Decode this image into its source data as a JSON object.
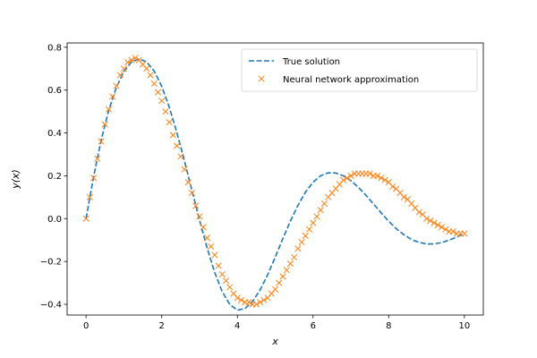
{
  "chart_data": {
    "type": "line",
    "title": "",
    "xlabel": "x",
    "ylabel": "y(x)",
    "xlim": [
      -0.5,
      10.5
    ],
    "ylim": [
      -0.45,
      0.82
    ],
    "grid": false,
    "legend_position": "top-right",
    "x_ticks": [
      0,
      2,
      4,
      6,
      8,
      10
    ],
    "x_tick_labels": [
      "0",
      "2",
      "4",
      "6",
      "8",
      "10"
    ],
    "y_ticks": [
      -0.4,
      -0.2,
      0.0,
      0.2,
      0.4,
      0.6,
      0.8
    ],
    "y_tick_labels": [
      "−0.4",
      "−0.2",
      "0.0",
      "0.2",
      "0.4",
      "0.6",
      "0.8"
    ],
    "series": [
      {
        "name": "True solution",
        "style": "dashed-line",
        "color": "#1f77b4",
        "x": [
          0.0,
          0.2,
          0.4,
          0.6,
          0.8,
          1.0,
          1.2,
          1.4,
          1.6,
          1.8,
          2.0,
          2.2,
          2.4,
          2.6,
          2.8,
          3.0,
          3.2,
          3.4,
          3.6,
          3.8,
          4.0,
          4.2,
          4.4,
          4.6,
          4.8,
          5.0,
          5.2,
          5.4,
          5.6,
          5.8,
          6.0,
          6.2,
          6.4,
          6.6,
          6.8,
          7.0,
          7.2,
          7.4,
          7.6,
          7.8,
          8.0,
          8.2,
          8.4,
          8.6,
          8.8,
          9.0,
          9.2,
          9.4,
          9.6,
          9.8,
          10.0
        ],
        "y": [
          0.0,
          0.196,
          0.367,
          0.506,
          0.612,
          0.687,
          0.731,
          0.746,
          0.732,
          0.689,
          0.618,
          0.52,
          0.402,
          0.27,
          0.131,
          -0.007,
          -0.137,
          -0.251,
          -0.341,
          -0.401,
          -0.427,
          -0.42,
          -0.387,
          -0.333,
          -0.262,
          -0.18,
          -0.094,
          -0.012,
          0.062,
          0.124,
          0.17,
          0.2,
          0.214,
          0.213,
          0.2,
          0.177,
          0.146,
          0.109,
          0.068,
          0.027,
          -0.012,
          -0.047,
          -0.075,
          -0.097,
          -0.111,
          -0.118,
          -0.118,
          -0.112,
          -0.1,
          -0.086,
          -0.069
        ]
      },
      {
        "name": "Neural network approximation",
        "style": "x-marker",
        "color": "#ff7f0e",
        "x": [
          0.0,
          0.1,
          0.2,
          0.3,
          0.4,
          0.5,
          0.6,
          0.7,
          0.8,
          0.9,
          1.0,
          1.1,
          1.2,
          1.3,
          1.4,
          1.5,
          1.6,
          1.7,
          1.8,
          1.9,
          2.0,
          2.1,
          2.2,
          2.3,
          2.4,
          2.5,
          2.6,
          2.7,
          2.8,
          2.9,
          3.0,
          3.1,
          3.2,
          3.3,
          3.4,
          3.5,
          3.6,
          3.7,
          3.8,
          3.9,
          4.0,
          4.1,
          4.2,
          4.3,
          4.4,
          4.5,
          4.6,
          4.7,
          4.8,
          4.9,
          5.0,
          5.1,
          5.2,
          5.3,
          5.4,
          5.5,
          5.6,
          5.7,
          5.8,
          5.9,
          6.0,
          6.1,
          6.2,
          6.3,
          6.4,
          6.5,
          6.6,
          6.7,
          6.8,
          6.9,
          7.0,
          7.1,
          7.2,
          7.3,
          7.4,
          7.5,
          7.6,
          7.7,
          7.8,
          7.9,
          8.0,
          8.1,
          8.2,
          8.3,
          8.4,
          8.5,
          8.6,
          8.7,
          8.8,
          8.9,
          9.0,
          9.1,
          9.2,
          9.3,
          9.4,
          9.5,
          9.6,
          9.7,
          9.8,
          9.9,
          10.0
        ],
        "y": [
          0.0,
          0.1,
          0.19,
          0.28,
          0.36,
          0.44,
          0.51,
          0.57,
          0.62,
          0.67,
          0.7,
          0.73,
          0.74,
          0.75,
          0.74,
          0.72,
          0.7,
          0.67,
          0.63,
          0.59,
          0.55,
          0.5,
          0.45,
          0.39,
          0.34,
          0.29,
          0.23,
          0.17,
          0.12,
          0.06,
          0.01,
          -0.04,
          -0.09,
          -0.13,
          -0.17,
          -0.22,
          -0.26,
          -0.29,
          -0.32,
          -0.35,
          -0.37,
          -0.38,
          -0.39,
          -0.39,
          -0.4,
          -0.4,
          -0.39,
          -0.38,
          -0.37,
          -0.35,
          -0.33,
          -0.3,
          -0.27,
          -0.24,
          -0.21,
          -0.18,
          -0.14,
          -0.11,
          -0.08,
          -0.05,
          -0.02,
          0.01,
          0.04,
          0.07,
          0.1,
          0.12,
          0.14,
          0.16,
          0.18,
          0.19,
          0.2,
          0.21,
          0.21,
          0.21,
          0.21,
          0.21,
          0.2,
          0.2,
          0.19,
          0.18,
          0.17,
          0.15,
          0.14,
          0.12,
          0.1,
          0.09,
          0.07,
          0.05,
          0.03,
          0.02,
          0.0,
          -0.01,
          -0.02,
          -0.03,
          -0.04,
          -0.05,
          -0.06,
          -0.06,
          -0.07,
          -0.07,
          -0.07
        ]
      }
    ]
  }
}
